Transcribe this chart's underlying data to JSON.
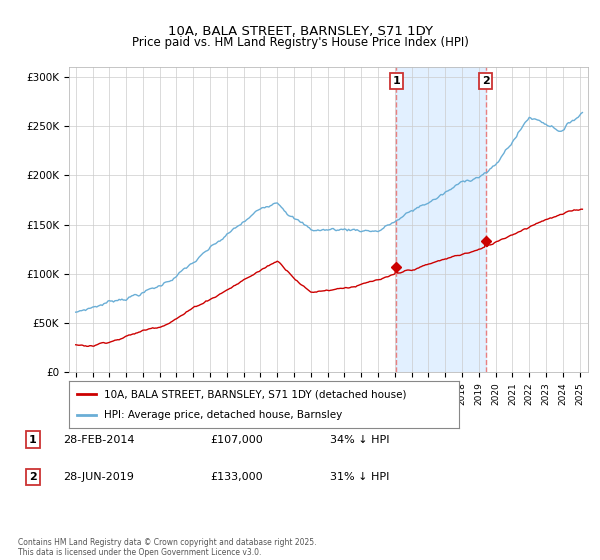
{
  "title1": "10A, BALA STREET, BARNSLEY, S71 1DY",
  "title2": "Price paid vs. HM Land Registry's House Price Index (HPI)",
  "ylim": [
    0,
    310000
  ],
  "yticks": [
    0,
    50000,
    100000,
    150000,
    200000,
    250000,
    300000
  ],
  "ytick_labels": [
    "£0",
    "£50K",
    "£100K",
    "£150K",
    "£200K",
    "£250K",
    "£300K"
  ],
  "hpi_color": "#6aaed6",
  "price_color": "#cc0000",
  "vline_color": "#e88080",
  "highlight_color": "#ddeeff",
  "legend_label1": "10A, BALA STREET, BARNSLEY, S71 1DY (detached house)",
  "legend_label2": "HPI: Average price, detached house, Barnsley",
  "table_row1": [
    "1",
    "28-FEB-2014",
    "£107,000",
    "34% ↓ HPI"
  ],
  "table_row2": [
    "2",
    "28-JUN-2019",
    "£133,000",
    "31% ↓ HPI"
  ],
  "footnote": "Contains HM Land Registry data © Crown copyright and database right 2025.\nThis data is licensed under the Open Government Licence v3.0.",
  "background_color": "#ffffff",
  "grid_color": "#cccccc"
}
